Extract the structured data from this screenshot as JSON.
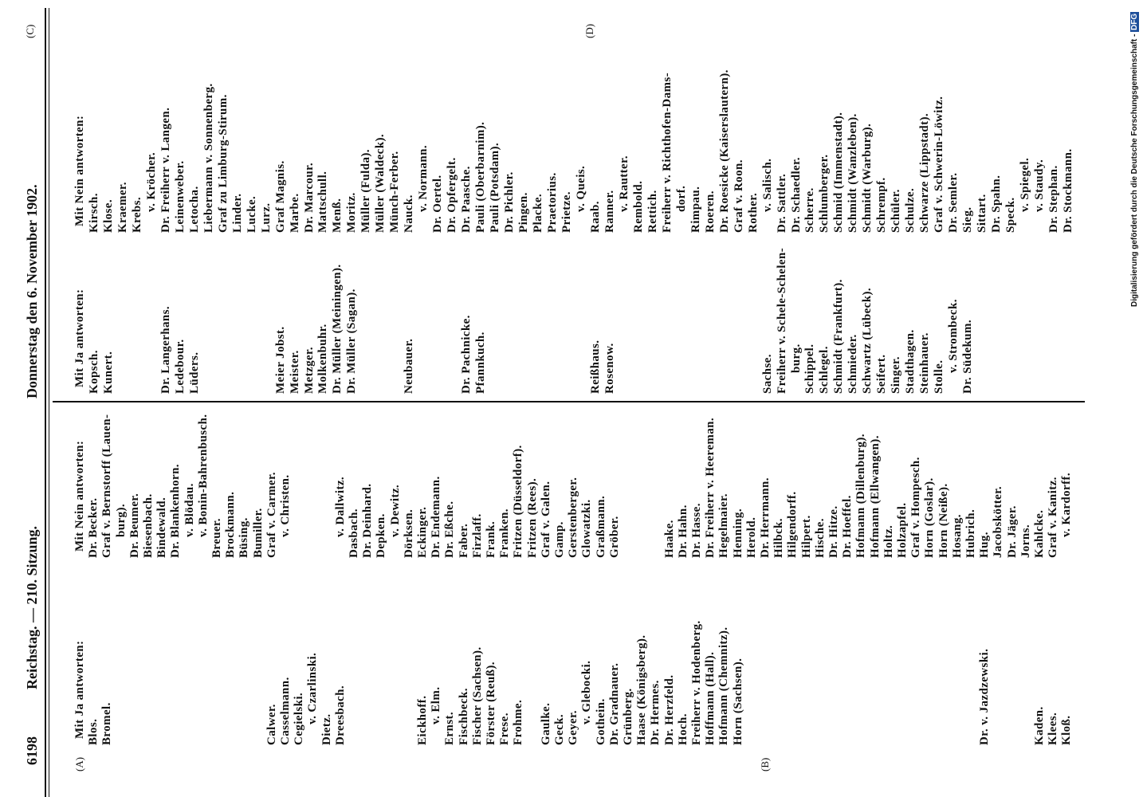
{
  "header": {
    "page_number": "6198",
    "left_title": "Reichstag. — 210. Sitzung.",
    "right_title": "Donnerstag den 6. November 1902."
  },
  "margin_marks": [
    "(A)",
    "(B)",
    "(C)",
    "(D)"
  ],
  "footer_note": {
    "text": "Digitalisierung gefördert durch die Deutsche Forschungsgemeinschaft - ",
    "logo": "DFG"
  },
  "left": {
    "ja": [
      "Mit Ja antworten:",
      "Blos.",
      "Bromel.",
      null,
      null,
      null,
      null,
      null,
      null,
      null,
      null,
      null,
      null,
      null,
      "Calwer.",
      "Casselmann.",
      "Cegielski.",
      "v. Czarlinski.",
      "Dietz.",
      "Dreesbach.",
      null,
      null,
      null,
      null,
      null,
      "Eickhoff.",
      "v. Elm.",
      "Ernst.",
      "Fischbeck.",
      "Fischer (Sachsen).",
      "Förster (Reuß).",
      "Frese.",
      "Frohme.",
      null,
      "Gaulke.",
      "Geck.",
      "Geyer.",
      "v. Glebocki.",
      "Gothein.",
      "Dr. Gradnauer.",
      "Grünberg.",
      "Haase (Königsberg).",
      "Dr. Hermes.",
      "Dr. Herzfeld.",
      "Hoch.",
      "Freiherr v. Hodenberg.",
      "Hoffmann (Hall).",
      "Hofmann (Chemnitz).",
      "Horn (Sachsen).",
      null,
      null,
      null,
      null,
      null,
      null,
      null,
      null,
      null,
      null,
      null,
      null,
      null,
      null,
      null,
      null,
      null,
      "Dr. v. Jazdzewski.",
      null,
      null,
      null,
      "Kaden.",
      "Klees.",
      "Kloß."
    ],
    "nein": [
      "Mit Nein antworten:",
      "Dr. Becker.",
      "Graf v. Bernstorff (Lauen-",
      "burg).",
      "Dr. Beumer.",
      "Biesenbach.",
      "Bindewald.",
      "Dr. Blankenhorn.",
      "v. Blödau.",
      "v. Bonin-Bahrenbusch.",
      "Breuer.",
      "Brockmann.",
      "Büsing.",
      "Bumiller.",
      "Graf v. Carmer.",
      "v. Christen.",
      null,
      null,
      null,
      "v. Dallwitz.",
      "Dasbach.",
      "Dr. Deinhard.",
      "Depken.",
      "v. Dewitz.",
      "Dörksen.",
      "Eckinger.",
      "Dr. Endemann.",
      "Dr. Eßche.",
      "Faber.",
      "Firzlaff.",
      "Frank.",
      "Franken.",
      "Fritzen (Düsseldorf).",
      "Fritzen (Rees).",
      "Graf v. Galen.",
      "Gamp.",
      "Gerstenberger.",
      "Glowatzki.",
      "Graßmann.",
      "Gröber.",
      null,
      null,
      null,
      "Haake.",
      "Dr. Hahn.",
      "Dr. Hasse.",
      "Dr. Freiherr v. Heereman.",
      "Hegelmaier.",
      "Henning.",
      "Herold.",
      "Dr. Herrmann.",
      "Hilbck.",
      "Hilgendorff.",
      "Hilpert.",
      "Hische.",
      "Dr. Hitze.",
      "Dr. Hoeffel.",
      "Hofmann (Dillenburg).",
      "Hofmann (Ellwangen).",
      "Holtz.",
      "Holzapfel.",
      "Graf v. Hompesch.",
      "Horn (Goslar).",
      "Horn (Neiße).",
      "Hosang.",
      "Hubrich.",
      "Hug.",
      "Jacobskötter.",
      "Dr. Jäger.",
      "Jorns.",
      "Kahlcke.",
      "Graf v. Kanitz.",
      "v. Kardorff."
    ]
  },
  "right": {
    "ja": [
      "Mit Ja antworten:",
      "Kopsch.",
      "Kunert.",
      null,
      null,
      null,
      "Dr. Langerhans.",
      "Ledebour.",
      "Lüders.",
      null,
      null,
      null,
      null,
      null,
      "Meier Jobst.",
      "Meister.",
      "Metzger.",
      "Molkenbuhr.",
      "Dr. Müller (Meiningen).",
      "Dr. Müller (Sagan).",
      null,
      null,
      null,
      "Neubauer.",
      null,
      null,
      null,
      "Dr. Pachnicke.",
      "Pfannkuch.",
      null,
      null,
      null,
      null,
      null,
      null,
      null,
      "Reißhaus.",
      "Rosenow.",
      null,
      null,
      null,
      null,
      null,
      null,
      null,
      null,
      null,
      null,
      "Sachse.",
      "Freiherr v. Schele-Schelen-",
      "burg.",
      "Schippel.",
      "Schlegel.",
      "Schmidt (Frankfurt).",
      "Schmieder.",
      "Schwartz (Lübeck).",
      "Seifert.",
      "Singer.",
      "Stadthagen.",
      "Steinhauer.",
      "Stolle.",
      "v. Strombeck.",
      "Dr. Südekum."
    ],
    "nein": [
      "Mit Nein antworten:",
      "Kirsch.",
      "Klose.",
      "Kraemer.",
      "Krebs.",
      "v. Kröcher.",
      "Dr. Freiherr v. Langen.",
      "Leinenweber.",
      "Letocha.",
      "Liebermann v. Sonnenberg.",
      "Graf zu Limburg-Stirum.",
      "Linder.",
      "Lucke.",
      "Lurz.",
      "Graf Magnis.",
      "Marbe.",
      "Dr. Marcour.",
      "Mattschull.",
      "Menß.",
      "Moritz.",
      "Müller (Fulda).",
      "Müller (Waldeck).",
      "Münch-Ferber.",
      "Nauck.",
      "v. Normann.",
      "Dr. Oertel.",
      "Dr. Opfergelt.",
      "Dr. Paasche.",
      "Pauli (Oberbarnim).",
      "Pauli (Potsdam).",
      "Dr. Pichler.",
      "Pingen.",
      "Placke.",
      "Praetorius.",
      "Prietze.",
      "v. Queis.",
      "Raab.",
      "Ranner.",
      "v. Rautter.",
      "Rembold.",
      "Rettich.",
      "Freiherr v. Richthofen-Dams-",
      "dorf.",
      "Rimpau.",
      "Roeren.",
      "Dr. Roesicke (Kaiserslautern).",
      "Graf v. Roon.",
      "Rother.",
      "v. Salisch.",
      "Dr. Sattler.",
      "Dr. Schaedler.",
      "Scherre.",
      "Schlumberger.",
      "Schmid (Immenstadt).",
      "Schmidt (Wanzleben).",
      "Schmidt (Warburg).",
      "Schrempf.",
      "Schüler.",
      "Schulze.",
      "Schwarze (Lippstadt).",
      "Graf v. Schwerin-Löwitz.",
      "Dr. Semler.",
      "Sieg.",
      "Sittart.",
      "Dr. Spahn.",
      "Speck.",
      "v. Spiegel.",
      "v. Staudy.",
      "Dr. Stephan.",
      "Dr. Stockmann."
    ]
  }
}
